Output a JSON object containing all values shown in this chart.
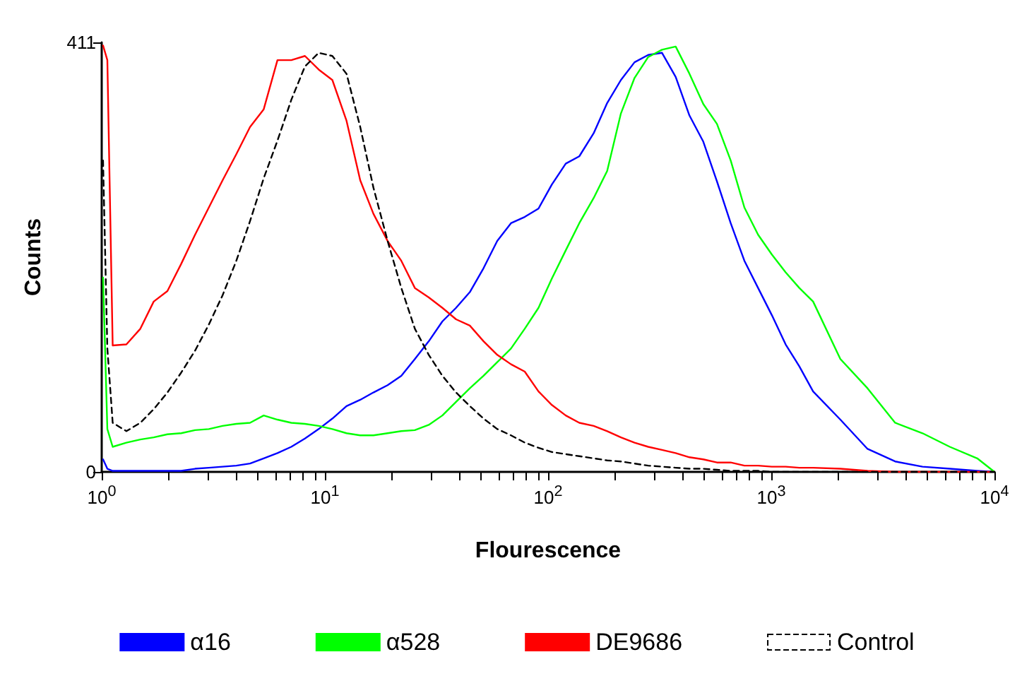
{
  "chart_data": {
    "type": "line",
    "xlabel": "Flourescence",
    "ylabel": "Counts",
    "x": [
      1.014,
      1.06,
      1.12,
      1.29,
      1.49,
      1.71,
      1.97,
      2.27,
      2.62,
      3.02,
      3.48,
      4.01,
      4.62,
      5.32,
      6.13,
      7.07,
      8.14,
      9.38,
      10.8,
      12.5,
      14.4,
      16.5,
      19.1,
      22,
      25.3,
      29.2,
      33.6,
      38.7,
      44.6,
      51.4,
      59.2,
      68.2,
      78.6,
      90.6,
      104,
      120,
      138,
      160,
      184,
      212,
      244,
      281,
      324,
      373,
      430,
      496,
      571,
      658,
      758,
      873,
      1006,
      1160,
      1336,
      1540,
      2040,
      2700,
      3590,
      4760,
      6310,
      8370,
      10000
    ],
    "series": [
      {
        "name": "α16",
        "color": "#0000ff",
        "values": [
          12,
          3,
          1,
          1,
          1,
          1,
          1,
          1,
          3,
          4,
          5,
          6,
          8,
          13,
          18,
          24,
          32,
          41,
          51,
          63,
          69,
          76,
          83,
          92,
          108,
          125,
          144,
          157,
          172,
          195,
          221,
          238,
          244,
          252,
          275,
          295,
          302,
          324,
          353,
          375,
          392,
          399,
          401,
          378,
          341,
          316,
          278,
          238,
          202,
          176,
          150,
          122,
          101,
          77,
          50,
          22,
          10,
          5,
          3,
          1,
          0
        ]
      },
      {
        "name": "α528",
        "color": "#00ff00",
        "values": [
          186,
          41,
          24,
          28,
          31,
          33,
          36,
          37,
          40,
          41,
          44,
          46,
          47,
          54,
          50,
          47,
          46,
          44,
          41,
          37,
          35,
          35,
          37,
          39,
          40,
          45,
          54,
          67,
          80,
          92,
          105,
          118,
          137,
          157,
          185,
          212,
          238,
          262,
          288,
          343,
          377,
          397,
          404,
          407,
          381,
          352,
          333,
          298,
          253,
          227,
          208,
          191,
          176,
          163,
          108,
          80,
          47,
          37,
          24,
          13,
          0
        ]
      },
      {
        "name": "DE9686",
        "color": "#ff0000",
        "values": [
          408,
          394,
          121,
          122,
          137,
          163,
          173,
          199,
          227,
          253,
          279,
          304,
          330,
          347,
          394,
          394,
          398,
          385,
          375,
          336,
          279,
          247,
          221,
          202,
          176,
          167,
          157,
          146,
          140,
          125,
          112,
          103,
          96,
          77,
          64,
          54,
          47,
          44,
          39,
          33,
          28,
          24,
          21,
          18,
          14,
          12,
          9,
          9,
          6,
          6,
          5,
          5,
          4,
          4,
          3,
          1,
          0,
          0,
          0,
          0,
          0
        ]
      },
      {
        "name": "Control",
        "color": "#000000",
        "line_style": "dashed",
        "values": [
          298,
          118,
          47,
          39,
          47,
          60,
          76,
          95,
          116,
          141,
          169,
          202,
          240,
          281,
          317,
          356,
          388,
          401,
          398,
          381,
          330,
          272,
          221,
          176,
          137,
          112,
          92,
          76,
          63,
          51,
          41,
          35,
          28,
          23,
          19,
          17,
          15,
          13,
          11,
          10,
          8,
          6,
          5,
          4,
          3,
          3,
          2,
          1,
          1,
          1,
          0,
          0,
          0,
          0,
          0,
          0,
          0,
          0,
          0,
          0,
          0
        ]
      }
    ],
    "xlim": [
      1,
      10000
    ],
    "xticks": [
      {
        "value": 1,
        "label": "10$^{0}$"
      },
      {
        "value": 2,
        "label": null
      },
      {
        "value": 3,
        "label": null
      },
      {
        "value": 4,
        "label": null
      },
      {
        "value": 5,
        "label": null
      },
      {
        "value": 6,
        "label": null
      },
      {
        "value": 7,
        "label": null
      },
      {
        "value": 8,
        "label": null
      },
      {
        "value": 9,
        "label": null
      },
      {
        "value": 10,
        "label": "10$^{1}$"
      },
      {
        "value": 20,
        "label": null
      },
      {
        "value": 30,
        "label": null
      },
      {
        "value": 40,
        "label": null
      },
      {
        "value": 50,
        "label": null
      },
      {
        "value": 60,
        "label": null
      },
      {
        "value": 70,
        "label": null
      },
      {
        "value": 80,
        "label": null
      },
      {
        "value": 90,
        "label": null
      },
      {
        "value": 100,
        "label": "10$^{2}$"
      },
      {
        "value": 200,
        "label": null
      },
      {
        "value": 300,
        "label": null
      },
      {
        "value": 400,
        "label": null
      },
      {
        "value": 500,
        "label": null
      },
      {
        "value": 600,
        "label": null
      },
      {
        "value": 700,
        "label": null
      },
      {
        "value": 800,
        "label": null
      },
      {
        "value": 900,
        "label": null
      },
      {
        "value": 1000,
        "label": "10$^{3}$"
      },
      {
        "value": 2000,
        "label": null
      },
      {
        "value": 3000,
        "label": null
      },
      {
        "value": 4000,
        "label": null
      },
      {
        "value": 5000,
        "label": null
      },
      {
        "value": 6000,
        "label": null
      },
      {
        "value": 7000,
        "label": null
      },
      {
        "value": 8000,
        "label": null
      },
      {
        "value": 9000,
        "label": null
      },
      {
        "value": 10000,
        "label": "10$^{4}$"
      }
    ],
    "ylim": [
      0,
      411
    ],
    "yticks": [
      0,
      411
    ],
    "log": "x",
    "grid": false,
    "legend": "bottom",
    "marker": "none",
    "line_style": "solid"
  }
}
